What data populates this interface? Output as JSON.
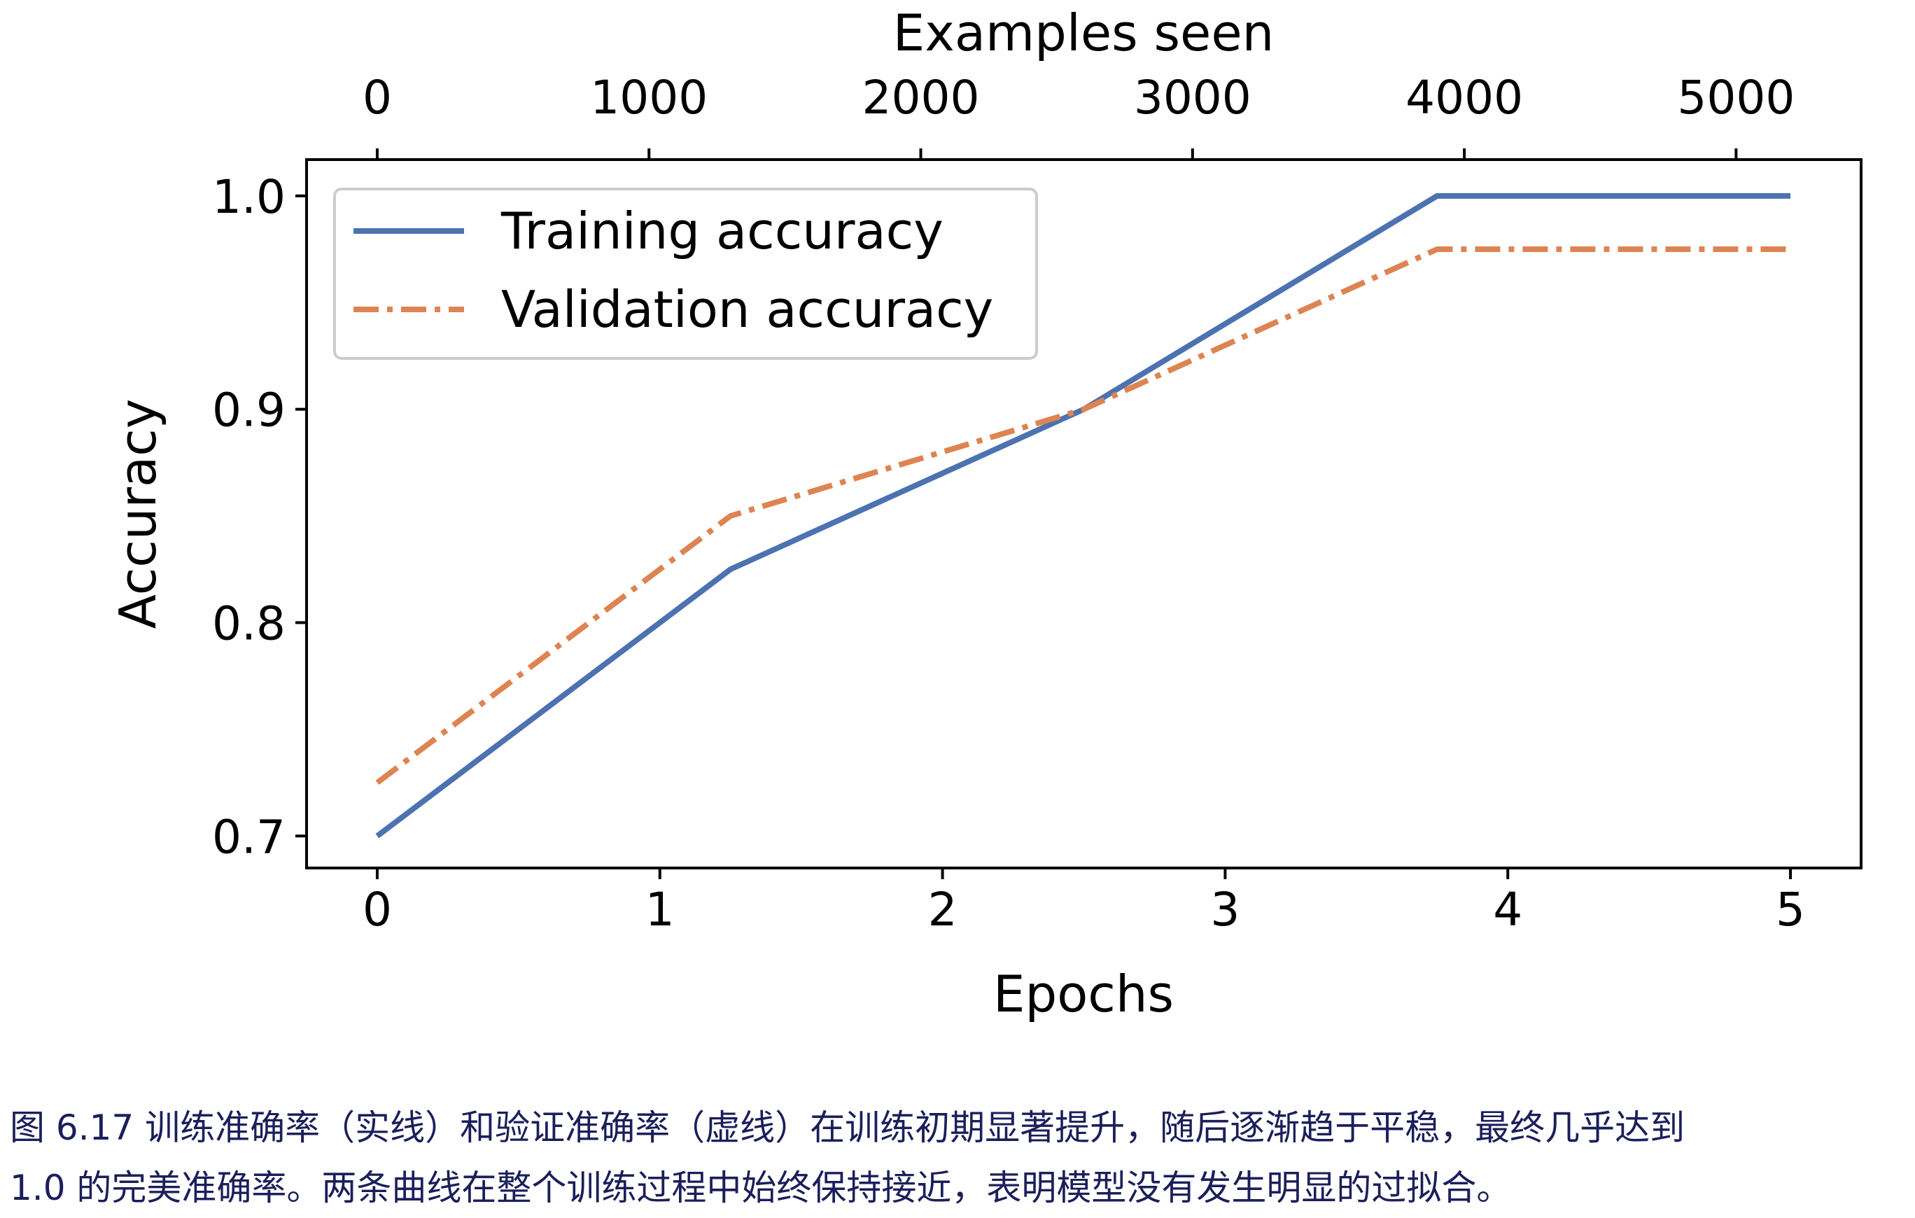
{
  "chart_data": {
    "type": "line",
    "xlabel": "Epochs",
    "ylabel": "Accuracy",
    "top_xlabel": "Examples seen",
    "xlim": [
      -0.25,
      5.25
    ],
    "ylim": [
      0.685,
      1.017
    ],
    "x_ticks": [
      "0",
      "1",
      "2",
      "3",
      "4",
      "5"
    ],
    "y_ticks": [
      "0.7",
      "0.8",
      "0.9",
      "1.0"
    ],
    "top_x_ticks": [
      "0",
      "1000",
      "2000",
      "3000",
      "4000",
      "5000"
    ],
    "grid": false,
    "legend_position": "top-left",
    "x": [
      0,
      1.25,
      2.5,
      3.75,
      5
    ],
    "series": [
      {
        "name": "Training accuracy",
        "values": [
          0.7,
          0.825,
          0.9,
          1.0,
          1.0
        ],
        "color": "#4c72b0",
        "style": "solid"
      },
      {
        "name": "Validation accuracy",
        "values": [
          0.725,
          0.85,
          0.9,
          0.975,
          0.975
        ],
        "color": "#dd8452",
        "style": "dashdot"
      }
    ]
  },
  "caption": {
    "line1": "图 6.17 训练准确率（实线）和验证准确率（虚线）在训练初期显著提升，随后逐渐趋于平稳，最终几乎达到",
    "line2": " 1.0 的完美准确率。两条曲线在整个训练过程中始终保持接近，表明模型没有发生明显的过拟合。"
  }
}
